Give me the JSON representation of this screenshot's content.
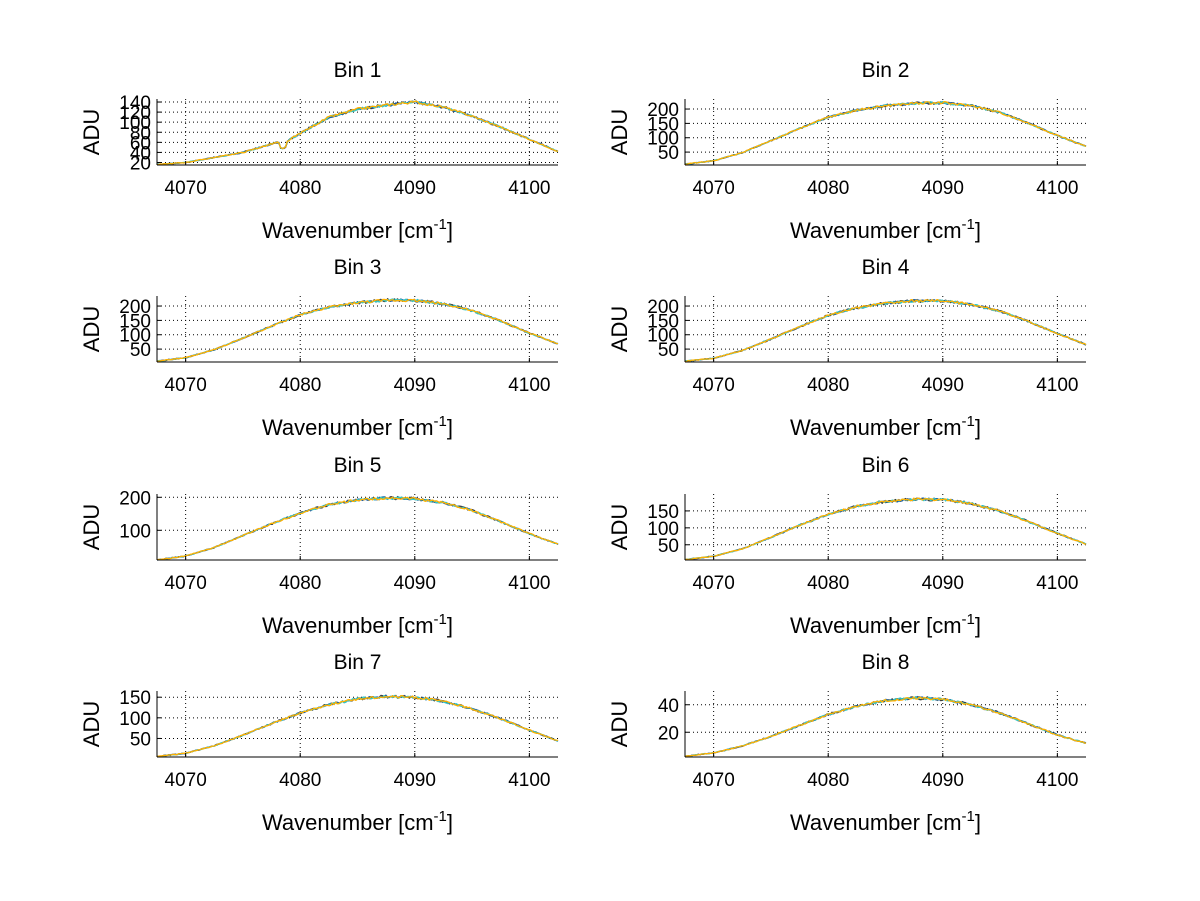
{
  "colors": {
    "accent": "#ffb000",
    "series_2": "#31c8c6",
    "series_3": "#1d5fa6",
    "series_4": "#3a3a3a"
  },
  "chart_data": [
    {
      "type": "line",
      "title": "Bin 1",
      "xlabel": "Wavenumber [cm",
      "xlabel_sup": "-1",
      "xlabel_end": "]",
      "ylabel": "ADU",
      "xlim": [
        4067.5,
        4102.5
      ],
      "ylim": [
        15,
        146
      ],
      "xticks": [
        "4070",
        "4080",
        "4090",
        "4100"
      ],
      "yticks": [
        "20",
        "40",
        "60",
        "80",
        "100",
        "120",
        "140"
      ],
      "x": [
        4067.5,
        4070,
        4075,
        4078,
        4078.5,
        4079,
        4080,
        4082.5,
        4085,
        4087.5,
        4090,
        4092.5,
        4095,
        4097.5,
        4100,
        4102.5
      ],
      "series": [
        {
          "name": "s1",
          "values": [
            16,
            20,
            40,
            60,
            54,
            64,
            78,
            110,
            126,
            134,
            140,
            130,
            112,
            90,
            66,
            42
          ]
        }
      ],
      "noise": [
        {
          "x": 4078.5,
          "dy": -8
        }
      ]
    },
    {
      "type": "line",
      "title": "Bin 2",
      "xlabel": "Wavenumber [cm",
      "xlabel_sup": "-1",
      "xlabel_end": "]",
      "ylabel": "ADU",
      "xlim": [
        4067.5,
        4102.5
      ],
      "ylim": [
        5,
        235
      ],
      "xticks": [
        "4070",
        "4080",
        "4090",
        "4100"
      ],
      "yticks": [
        "50",
        "100",
        "150",
        "200"
      ],
      "x": [
        4067.5,
        4070,
        4072.5,
        4075,
        4077.5,
        4080,
        4082.5,
        4085,
        4087.5,
        4090,
        4092.5,
        4095,
        4097.5,
        4100,
        4102.5
      ],
      "series": [
        {
          "name": "s1",
          "values": [
            8,
            20,
            48,
            90,
            132,
            172,
            196,
            212,
            220,
            222,
            212,
            188,
            150,
            108,
            70
          ]
        }
      ]
    },
    {
      "type": "line",
      "title": "Bin 3",
      "xlabel": "Wavenumber [cm",
      "xlabel_sup": "-1",
      "xlabel_end": "]",
      "ylabel": "ADU",
      "xlim": [
        4067.5,
        4102.5
      ],
      "ylim": [
        5,
        235
      ],
      "xticks": [
        "4070",
        "4080",
        "4090",
        "4100"
      ],
      "yticks": [
        "50",
        "100",
        "150",
        "200"
      ],
      "x": [
        4067.5,
        4070,
        4072.5,
        4075,
        4077.5,
        4080,
        4082.5,
        4085,
        4087.5,
        4090,
        4092.5,
        4095,
        4097.5,
        4100,
        4102.5
      ],
      "series": [
        {
          "name": "s1",
          "values": [
            8,
            20,
            48,
            88,
            130,
            170,
            196,
            212,
            220,
            220,
            208,
            184,
            148,
            106,
            68
          ]
        }
      ]
    },
    {
      "type": "line",
      "title": "Bin 4",
      "xlabel": "Wavenumber [cm",
      "xlabel_sup": "-1",
      "xlabel_end": "]",
      "ylabel": "ADU",
      "xlim": [
        4067.5,
        4102.5
      ],
      "ylim": [
        5,
        235
      ],
      "xticks": [
        "4070",
        "4080",
        "4090",
        "4100"
      ],
      "yticks": [
        "50",
        "100",
        "150",
        "200"
      ],
      "x": [
        4067.5,
        4070,
        4072.5,
        4075,
        4077.5,
        4080,
        4082.5,
        4085,
        4087.5,
        4090,
        4092.5,
        4095,
        4097.5,
        4100,
        4102.5
      ],
      "series": [
        {
          "name": "s1",
          "values": [
            8,
            18,
            45,
            85,
            128,
            168,
            194,
            210,
            218,
            218,
            206,
            182,
            146,
            104,
            66
          ]
        }
      ]
    },
    {
      "type": "line",
      "title": "Bin 5",
      "xlabel": "Wavenumber [cm",
      "xlabel_sup": "-1",
      "xlabel_end": "]",
      "ylabel": "ADU",
      "xlim": [
        4067.5,
        4102.5
      ],
      "ylim": [
        10,
        210
      ],
      "xticks": [
        "4070",
        "4080",
        "4090",
        "4100"
      ],
      "yticks": [
        "100",
        "200"
      ],
      "x": [
        4067.5,
        4070,
        4072.5,
        4075,
        4077.5,
        4080,
        4082.5,
        4085,
        4087.5,
        4090,
        4092.5,
        4095,
        4097.5,
        4100,
        4102.5
      ],
      "series": [
        {
          "name": "s1",
          "values": [
            10,
            22,
            48,
            84,
            120,
            152,
            178,
            192,
            198,
            196,
            184,
            160,
            126,
            90,
            58
          ]
        }
      ]
    },
    {
      "type": "line",
      "title": "Bin 6",
      "xlabel": "Wavenumber [cm",
      "xlabel_sup": "-1",
      "xlabel_end": "]",
      "ylabel": "ADU",
      "xlim": [
        4067.5,
        4102.5
      ],
      "ylim": [
        5,
        200
      ],
      "xticks": [
        "4070",
        "4080",
        "4090",
        "4100"
      ],
      "yticks": [
        "50",
        "100",
        "150"
      ],
      "x": [
        4067.5,
        4070,
        4072.5,
        4075,
        4077.5,
        4080,
        4082.5,
        4085,
        4087.5,
        4090,
        4092.5,
        4095,
        4097.5,
        4100,
        4102.5
      ],
      "series": [
        {
          "name": "s1",
          "values": [
            6,
            16,
            38,
            72,
            108,
            140,
            164,
            178,
            184,
            184,
            172,
            150,
            118,
            84,
            52
          ]
        }
      ]
    },
    {
      "type": "line",
      "title": "Bin 7",
      "xlabel": "Wavenumber [cm",
      "xlabel_sup": "-1",
      "xlabel_end": "]",
      "ylabel": "ADU",
      "xlim": [
        4067.5,
        4102.5
      ],
      "ylim": [
        5,
        165
      ],
      "xticks": [
        "4070",
        "4080",
        "4090",
        "4100"
      ],
      "yticks": [
        "50",
        "100",
        "150"
      ],
      "x": [
        4067.5,
        4070,
        4072.5,
        4075,
        4077.5,
        4080,
        4082.5,
        4085,
        4087.5,
        4090,
        4092.5,
        4095,
        4097.5,
        4100,
        4102.5
      ],
      "series": [
        {
          "name": "s1",
          "values": [
            6,
            14,
            32,
            58,
            86,
            112,
            132,
            146,
            152,
            150,
            140,
            122,
            98,
            70,
            44
          ]
        }
      ]
    },
    {
      "type": "line",
      "title": "Bin 8",
      "xlabel": "Wavenumber [cm",
      "xlabel_sup": "-1",
      "xlabel_end": "]",
      "ylabel": "ADU",
      "xlim": [
        4067.5,
        4102.5
      ],
      "ylim": [
        2,
        50
      ],
      "xticks": [
        "4070",
        "4080",
        "4090",
        "4100"
      ],
      "yticks": [
        "20",
        "40"
      ],
      "x": [
        4067.5,
        4070,
        4072.5,
        4075,
        4077.5,
        4080,
        4082.5,
        4085,
        4087.5,
        4090,
        4092.5,
        4095,
        4097.5,
        4100,
        4102.5
      ],
      "series": [
        {
          "name": "s1",
          "values": [
            2.5,
            5,
            10,
            17,
            25,
            33,
            39,
            43,
            45,
            44,
            40,
            34,
            26,
            18,
            12
          ]
        }
      ]
    }
  ]
}
